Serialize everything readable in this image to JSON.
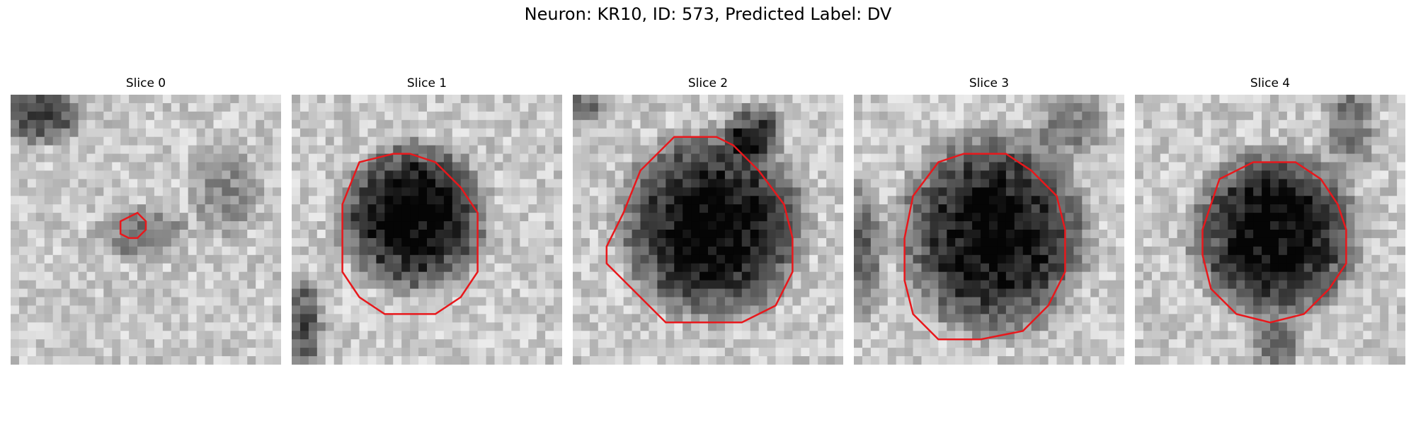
{
  "figure": {
    "suptitle": "Neuron: KR10, ID: 573, Predicted Label: DV",
    "contour_color": "#e8181c",
    "panels": [
      {
        "title": "Slice 0"
      },
      {
        "title": "Slice 1"
      },
      {
        "title": "Slice 2"
      },
      {
        "title": "Slice 3"
      },
      {
        "title": "Slice 4"
      }
    ]
  }
}
